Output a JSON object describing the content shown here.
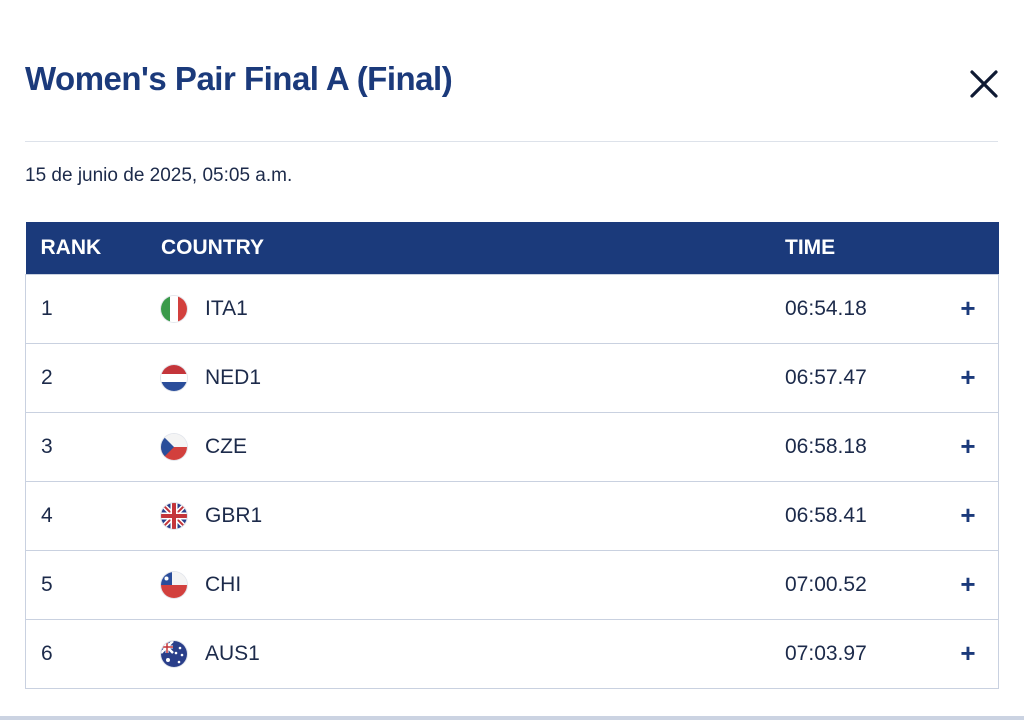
{
  "header": {
    "title": "Women's Pair Final A (Final)",
    "date": "15 de junio de 2025, 05:05 a.m."
  },
  "table": {
    "columns": [
      "RANK",
      "COUNTRY",
      "TIME"
    ],
    "rows": [
      [
        1,
        "ITA1",
        "06:54.18"
      ],
      [
        2,
        "NED1",
        "06:57.47"
      ],
      [
        3,
        "CZE",
        "06:58.18"
      ],
      [
        4,
        "GBR1",
        "06:58.41"
      ],
      [
        5,
        "CHI",
        "07:00.52"
      ],
      [
        6,
        "AUS1",
        "07:03.97"
      ]
    ]
  }
}
